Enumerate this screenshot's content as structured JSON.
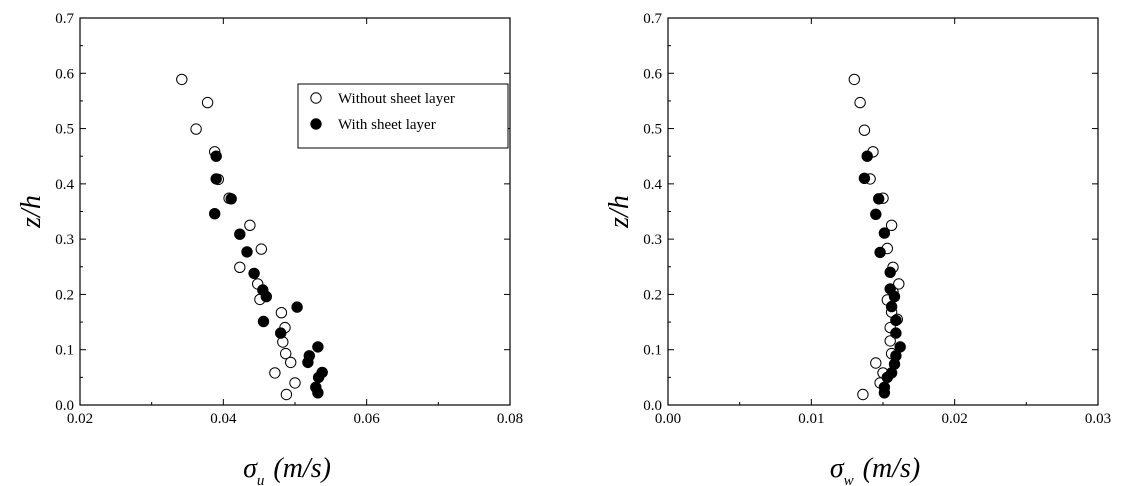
{
  "chart_data": [
    {
      "type": "scatter",
      "title": "",
      "xlabel": {
        "symbol": "σ",
        "subscript": "u",
        "unit": "(m/s)"
      },
      "ylabel": "z/h",
      "xlim": [
        0.02,
        0.08
      ],
      "ylim": [
        0.0,
        0.7
      ],
      "xticks": [
        "0.02",
        "0.04",
        "0.06",
        "0.08"
      ],
      "xtick_values": [
        0.02,
        0.04,
        0.06,
        0.08
      ],
      "yticks": [
        "0.0",
        "0.1",
        "0.2",
        "0.3",
        "0.4",
        "0.5",
        "0.6",
        "0.7"
      ],
      "ytick_values": [
        0.0,
        0.1,
        0.2,
        0.3,
        0.4,
        0.5,
        0.6,
        0.7
      ],
      "legend_position": "top-right",
      "series": [
        {
          "name": "Without sheet layer",
          "marker": "open-circle",
          "points": [
            [
              0.0342,
              0.589
            ],
            [
              0.0378,
              0.547
            ],
            [
              0.0362,
              0.499
            ],
            [
              0.0388,
              0.458
            ],
            [
              0.0393,
              0.408
            ],
            [
              0.0408,
              0.374
            ],
            [
              0.0437,
              0.325
            ],
            [
              0.0453,
              0.282
            ],
            [
              0.0423,
              0.249
            ],
            [
              0.0448,
              0.219
            ],
            [
              0.0451,
              0.191
            ],
            [
              0.0481,
              0.167
            ],
            [
              0.0486,
              0.14
            ],
            [
              0.0483,
              0.114
            ],
            [
              0.0487,
              0.093
            ],
            [
              0.0494,
              0.077
            ],
            [
              0.0472,
              0.058
            ],
            [
              0.05,
              0.04
            ],
            [
              0.0488,
              0.019
            ]
          ]
        },
        {
          "name": "With sheet layer",
          "marker": "filled-circle",
          "points": [
            [
              0.039,
              0.45
            ],
            [
              0.039,
              0.409
            ],
            [
              0.0411,
              0.373
            ],
            [
              0.0388,
              0.346
            ],
            [
              0.0423,
              0.309
            ],
            [
              0.0433,
              0.277
            ],
            [
              0.0443,
              0.238
            ],
            [
              0.0455,
              0.208
            ],
            [
              0.046,
              0.196
            ],
            [
              0.0503,
              0.177
            ],
            [
              0.0456,
              0.151
            ],
            [
              0.048,
              0.13
            ],
            [
              0.0532,
              0.105
            ],
            [
              0.052,
              0.089
            ],
            [
              0.0518,
              0.077
            ],
            [
              0.0538,
              0.059
            ],
            [
              0.0533,
              0.05
            ],
            [
              0.0529,
              0.032
            ],
            [
              0.0532,
              0.022
            ]
          ]
        }
      ]
    },
    {
      "type": "scatter",
      "title": "",
      "xlabel": {
        "symbol": "σ",
        "subscript": "w",
        "unit": "(m/s)"
      },
      "ylabel": "z/h",
      "xlim": [
        0.0,
        0.03
      ],
      "ylim": [
        0.0,
        0.7
      ],
      "xticks": [
        "0.00",
        "0.01",
        "0.02",
        "0.03"
      ],
      "xtick_values": [
        0.0,
        0.01,
        0.02,
        0.03
      ],
      "yticks": [
        "0.0",
        "0.1",
        "0.2",
        "0.3",
        "0.4",
        "0.5",
        "0.6",
        "0.7"
      ],
      "ytick_values": [
        0.0,
        0.1,
        0.2,
        0.3,
        0.4,
        0.5,
        0.6,
        0.7
      ],
      "legend_position": "none",
      "series": [
        {
          "name": "Without sheet layer",
          "marker": "open-circle",
          "points": [
            [
              0.013,
              0.589
            ],
            [
              0.0134,
              0.547
            ],
            [
              0.0137,
              0.497
            ],
            [
              0.0143,
              0.458
            ],
            [
              0.0141,
              0.409
            ],
            [
              0.015,
              0.374
            ],
            [
              0.0156,
              0.325
            ],
            [
              0.0153,
              0.283
            ],
            [
              0.0157,
              0.249
            ],
            [
              0.0161,
              0.219
            ],
            [
              0.0157,
              0.204
            ],
            [
              0.0153,
              0.19
            ],
            [
              0.0156,
              0.168
            ],
            [
              0.016,
              0.155
            ],
            [
              0.0155,
              0.14
            ],
            [
              0.0155,
              0.116
            ],
            [
              0.0156,
              0.093
            ],
            [
              0.0145,
              0.076
            ],
            [
              0.015,
              0.058
            ],
            [
              0.0148,
              0.04
            ],
            [
              0.0136,
              0.019
            ]
          ]
        },
        {
          "name": "With sheet layer",
          "marker": "filled-circle",
          "points": [
            [
              0.0139,
              0.45
            ],
            [
              0.0137,
              0.41
            ],
            [
              0.0147,
              0.373
            ],
            [
              0.0145,
              0.345
            ],
            [
              0.0151,
              0.311
            ],
            [
              0.0148,
              0.276
            ],
            [
              0.0155,
              0.24
            ],
            [
              0.0155,
              0.21
            ],
            [
              0.0158,
              0.196
            ],
            [
              0.0156,
              0.178
            ],
            [
              0.0159,
              0.153
            ],
            [
              0.0159,
              0.13
            ],
            [
              0.0162,
              0.105
            ],
            [
              0.0159,
              0.089
            ],
            [
              0.0158,
              0.074
            ],
            [
              0.0156,
              0.058
            ],
            [
              0.0153,
              0.05
            ],
            [
              0.0151,
              0.032
            ],
            [
              0.0151,
              0.022
            ]
          ]
        }
      ]
    }
  ]
}
